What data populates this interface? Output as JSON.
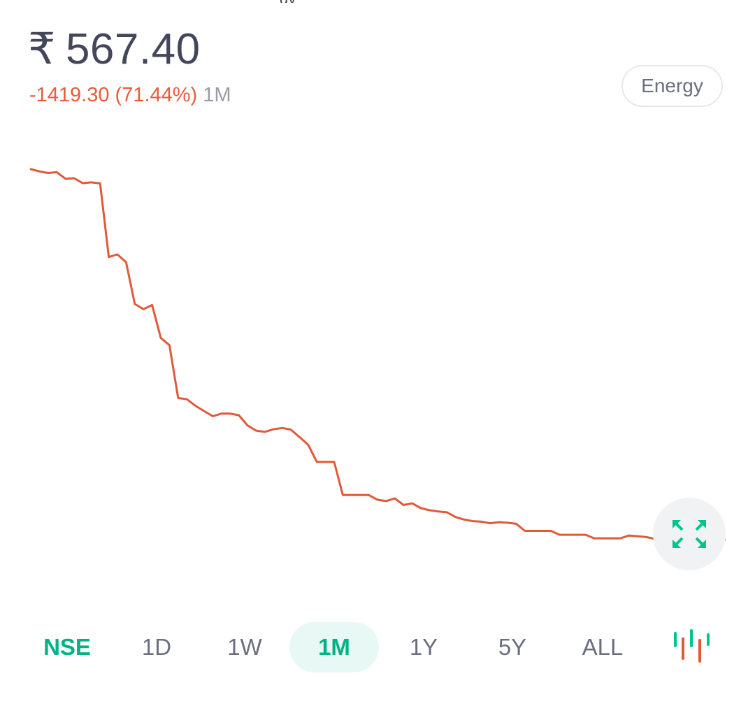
{
  "header": {
    "price_symbol": "₹",
    "price_value": "567.40",
    "change": "-1419.30 (71.44%)",
    "period": "1M",
    "sector_label": "Energy"
  },
  "colors": {
    "price_text": "#44475b",
    "negative": "#eb5b3c",
    "accent": "#00b386",
    "muted": "#9b9ba8",
    "pill_border": "#e6e8ec"
  },
  "chart_controls": {
    "expand_icon": "expand-arrows-icon",
    "exchange_label": "NSE",
    "ranges": [
      "1D",
      "1W",
      "1M",
      "1Y",
      "5Y",
      "ALL"
    ],
    "active_range": "1M",
    "candle_icon": "candlestick-toggle-icon"
  },
  "chart_data": {
    "type": "line",
    "title": "",
    "xlabel": "",
    "ylabel": "",
    "series": [
      {
        "x": [
          0,
          1,
          2,
          3,
          4,
          5,
          6,
          7,
          8,
          9,
          10,
          11,
          12,
          13,
          14,
          15,
          16,
          17,
          18,
          19,
          20,
          21,
          22,
          23,
          24,
          25,
          26,
          27,
          28,
          29,
          30,
          31,
          32,
          33,
          34,
          35,
          36,
          37,
          38,
          39,
          40,
          41,
          42,
          43,
          44,
          45,
          46,
          47,
          48,
          49,
          50,
          51,
          52,
          53,
          54,
          55,
          56,
          57,
          58,
          59,
          60,
          61,
          62,
          63,
          64,
          65,
          66,
          67,
          68,
          69,
          70,
          71,
          72,
          73,
          74,
          75,
          76,
          77,
          78,
          79,
          80
        ],
        "values": [
          1986.7,
          1978,
          1972,
          1975,
          1950,
          1952,
          1933,
          1936,
          1932,
          1650,
          1660,
          1630,
          1470,
          1450,
          1466,
          1340,
          1312,
          1110,
          1105,
          1080,
          1060,
          1040,
          1050,
          1050,
          1044,
          1005,
          985,
          980,
          990,
          995,
          989,
          960,
          931,
          865,
          865,
          865,
          738,
          738,
          738,
          738,
          720,
          715,
          725,
          700,
          706,
          688,
          680,
          675,
          672,
          654,
          644,
          638,
          636,
          630,
          634,
          632,
          628,
          601,
          601,
          601,
          601,
          586,
          586,
          586,
          586,
          572,
          572,
          572,
          572,
          583,
          580,
          577,
          570,
          567.4,
          572,
          573,
          570,
          568,
          572,
          568,
          567.4
        ]
      }
    ]
  }
}
